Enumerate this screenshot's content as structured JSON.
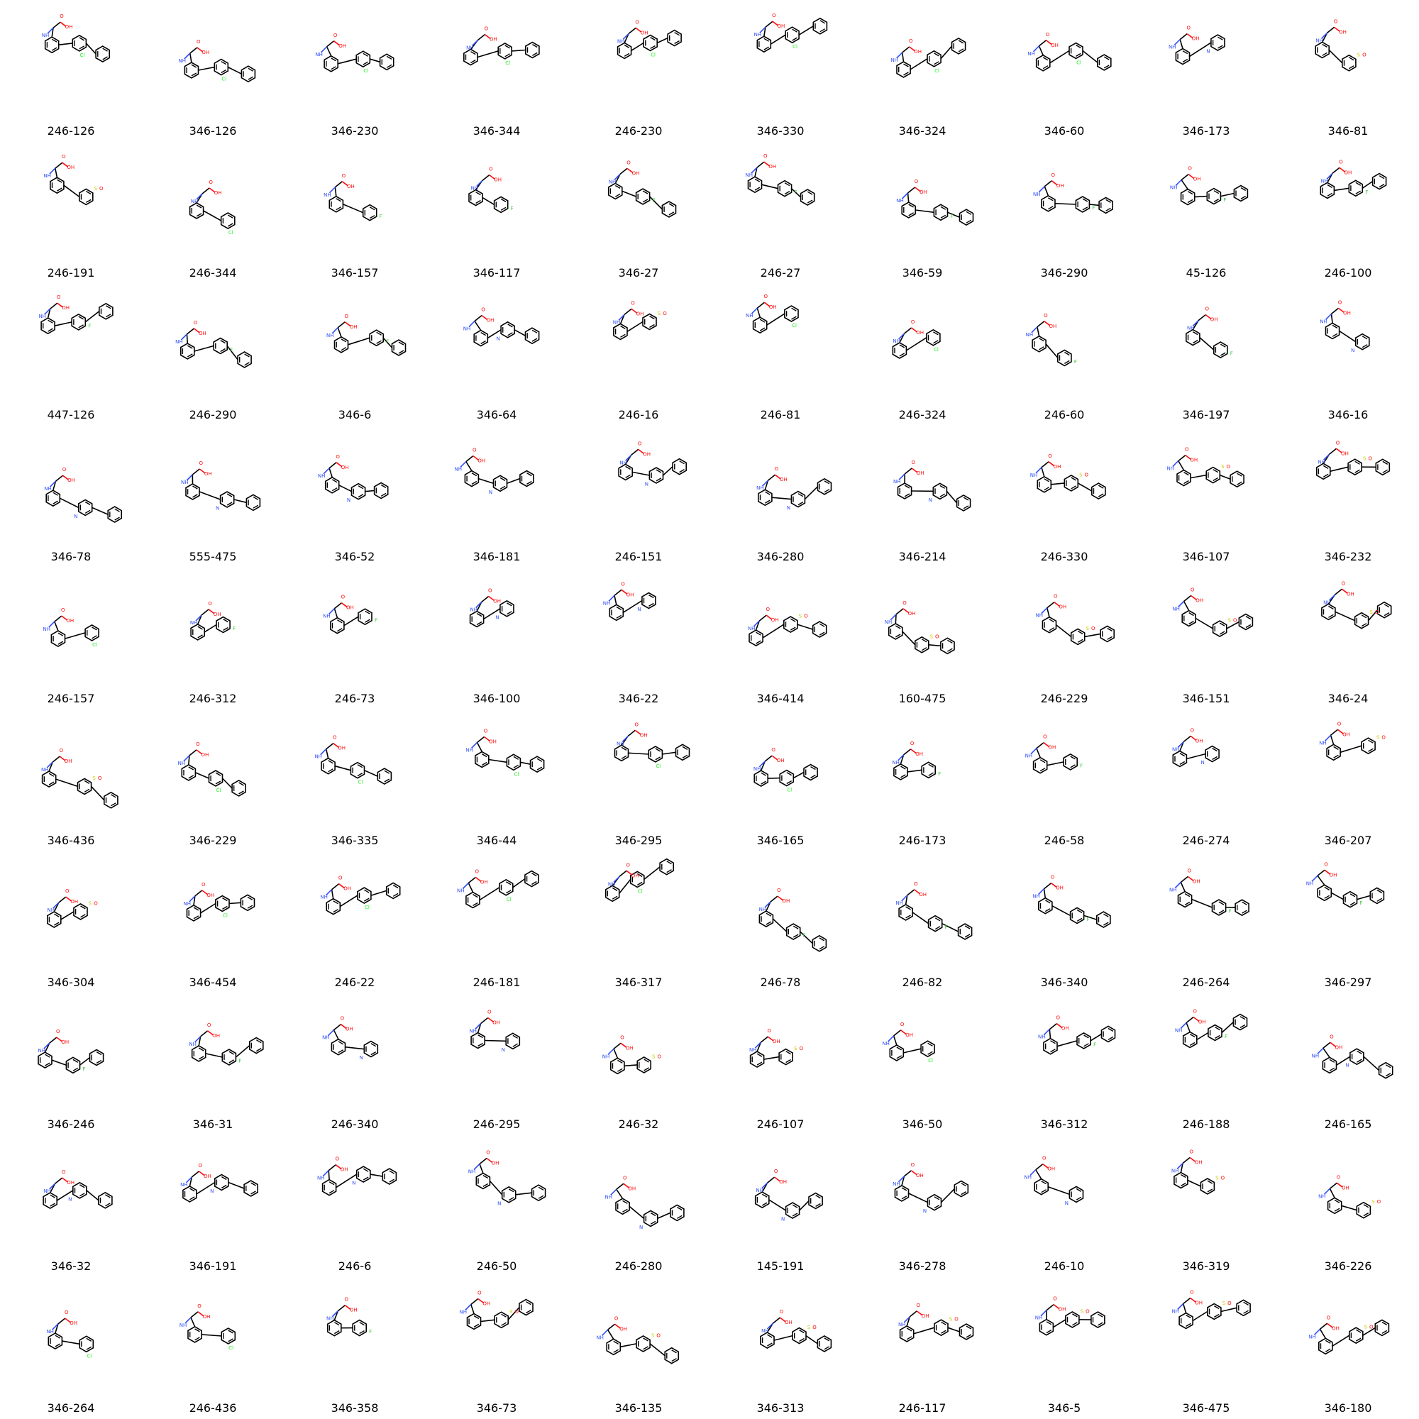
{
  "grid": {
    "columns": 10,
    "rows": 10
  },
  "atom_colors": {
    "carbon": "#000000",
    "oxygen": "#ff0d0d",
    "nitrogen": "#3050f8",
    "sulfur": "#cccc00",
    "fluorine": "#33cc33",
    "chlorine": "#1ff01f"
  },
  "molecules": [
    {
      "label": "246-126"
    },
    {
      "label": "346-126"
    },
    {
      "label": "346-230"
    },
    {
      "label": "346-344"
    },
    {
      "label": "246-230"
    },
    {
      "label": "346-330"
    },
    {
      "label": "346-324"
    },
    {
      "label": "346-60"
    },
    {
      "label": "346-173"
    },
    {
      "label": "346-81"
    },
    {
      "label": "246-191"
    },
    {
      "label": "246-344"
    },
    {
      "label": "346-157"
    },
    {
      "label": "346-117"
    },
    {
      "label": "346-27"
    },
    {
      "label": "246-27"
    },
    {
      "label": "346-59"
    },
    {
      "label": "346-290"
    },
    {
      "label": "45-126"
    },
    {
      "label": "246-100"
    },
    {
      "label": "447-126"
    },
    {
      "label": "246-290"
    },
    {
      "label": "346-6"
    },
    {
      "label": "346-64"
    },
    {
      "label": "246-16"
    },
    {
      "label": "246-81"
    },
    {
      "label": "246-324"
    },
    {
      "label": "246-60"
    },
    {
      "label": "346-197"
    },
    {
      "label": "346-16"
    },
    {
      "label": "346-78"
    },
    {
      "label": "555-475"
    },
    {
      "label": "346-52"
    },
    {
      "label": "346-181"
    },
    {
      "label": "246-151"
    },
    {
      "label": "346-280"
    },
    {
      "label": "346-214"
    },
    {
      "label": "246-330"
    },
    {
      "label": "346-107"
    },
    {
      "label": "346-232"
    },
    {
      "label": "246-157"
    },
    {
      "label": "246-312"
    },
    {
      "label": "246-73"
    },
    {
      "label": "346-100"
    },
    {
      "label": "346-22"
    },
    {
      "label": "346-414"
    },
    {
      "label": "160-475"
    },
    {
      "label": "246-229"
    },
    {
      "label": "346-151"
    },
    {
      "label": "346-24"
    },
    {
      "label": "346-436"
    },
    {
      "label": "346-229"
    },
    {
      "label": "346-335"
    },
    {
      "label": "346-44"
    },
    {
      "label": "346-295"
    },
    {
      "label": "346-165"
    },
    {
      "label": "246-173"
    },
    {
      "label": "246-58"
    },
    {
      "label": "246-274"
    },
    {
      "label": "346-207"
    },
    {
      "label": "346-304"
    },
    {
      "label": "346-454"
    },
    {
      "label": "246-22"
    },
    {
      "label": "246-181"
    },
    {
      "label": "346-317"
    },
    {
      "label": "246-78"
    },
    {
      "label": "246-82"
    },
    {
      "label": "346-340"
    },
    {
      "label": "246-264"
    },
    {
      "label": "346-297"
    },
    {
      "label": "346-246"
    },
    {
      "label": "346-31"
    },
    {
      "label": "246-340"
    },
    {
      "label": "246-295"
    },
    {
      "label": "246-32"
    },
    {
      "label": "246-107"
    },
    {
      "label": "346-50"
    },
    {
      "label": "346-312"
    },
    {
      "label": "246-188"
    },
    {
      "label": "246-165"
    },
    {
      "label": "346-32"
    },
    {
      "label": "346-191"
    },
    {
      "label": "246-6"
    },
    {
      "label": "246-50"
    },
    {
      "label": "246-280"
    },
    {
      "label": "145-191"
    },
    {
      "label": "346-278"
    },
    {
      "label": "246-10"
    },
    {
      "label": "346-319"
    },
    {
      "label": "346-226"
    },
    {
      "label": "346-264"
    },
    {
      "label": "246-436"
    },
    {
      "label": "346-358"
    },
    {
      "label": "346-73"
    },
    {
      "label": "346-135"
    },
    {
      "label": "346-313"
    },
    {
      "label": "246-117"
    },
    {
      "label": "346-5"
    },
    {
      "label": "346-475"
    },
    {
      "label": "346-180"
    }
  ]
}
